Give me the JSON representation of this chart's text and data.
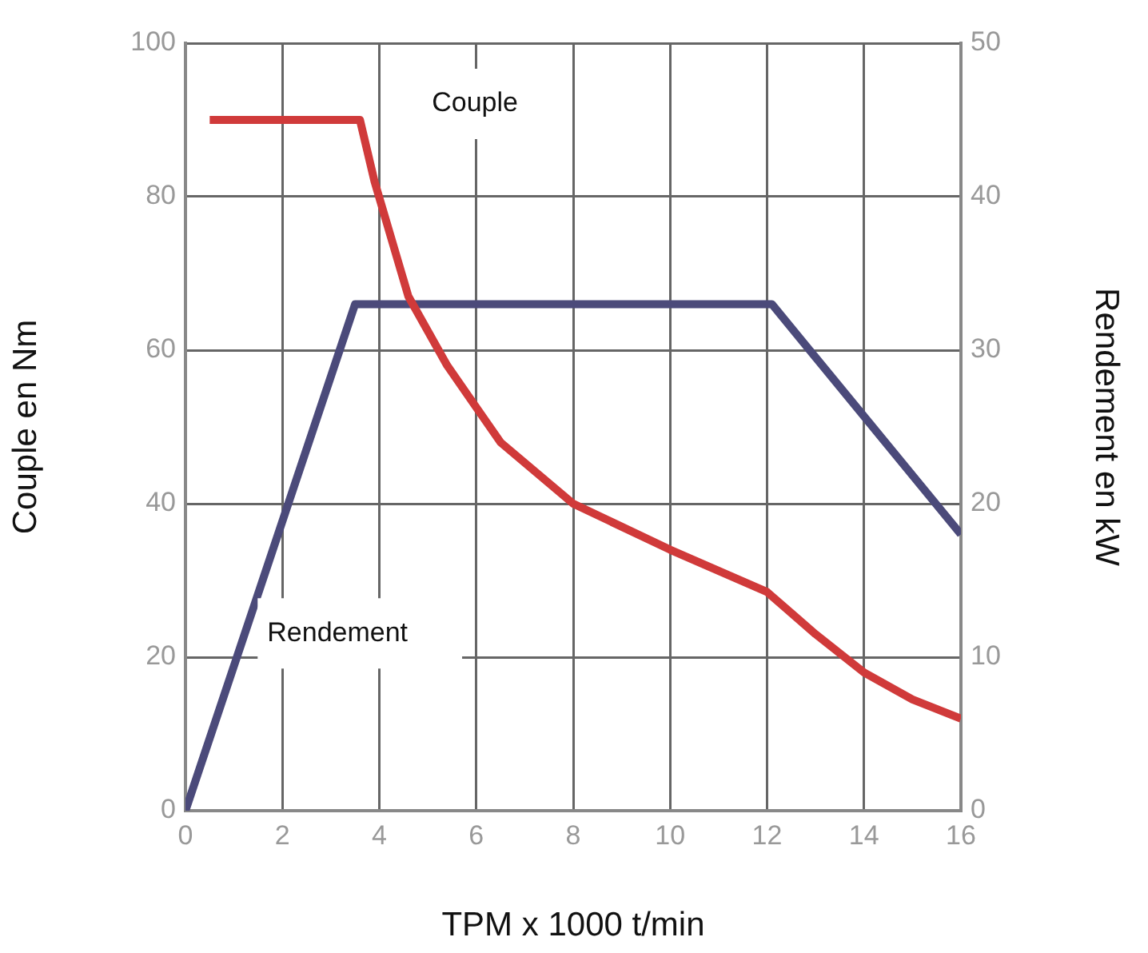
{
  "chart_data": {
    "type": "line",
    "xlabel": "TPM x 1000 t/min",
    "ylabel": "Couple en Nm",
    "y2label": "Rendement en kW",
    "xlim": [
      0,
      16
    ],
    "xticks": [
      0,
      2,
      4,
      6,
      8,
      10,
      12,
      14,
      16
    ],
    "ylim": [
      0,
      100
    ],
    "yticks": [
      0,
      20,
      40,
      60,
      80,
      100
    ],
    "y2lim": [
      0,
      50
    ],
    "y2ticks": [
      0,
      10,
      20,
      30,
      40,
      50
    ],
    "grid": true,
    "legend": false,
    "marker": "none",
    "line_style": "solid",
    "series": [
      {
        "name": "Couple",
        "color": "#d03a3a",
        "x": [
          0.5,
          3.6,
          3.9,
          4.6,
          5.4,
          6.5,
          8,
          10,
          12,
          13,
          14,
          15,
          16
        ],
        "values": [
          90,
          90,
          82,
          67,
          58,
          48,
          40,
          34,
          28.5,
          23,
          18,
          14.5,
          12
        ]
      },
      {
        "name": "Rendement",
        "color": "#4b4a7a",
        "axis": "y2",
        "x": [
          0,
          3.5,
          12.1,
          16
        ],
        "values": [
          0,
          33,
          33,
          18
        ]
      }
    ]
  }
}
